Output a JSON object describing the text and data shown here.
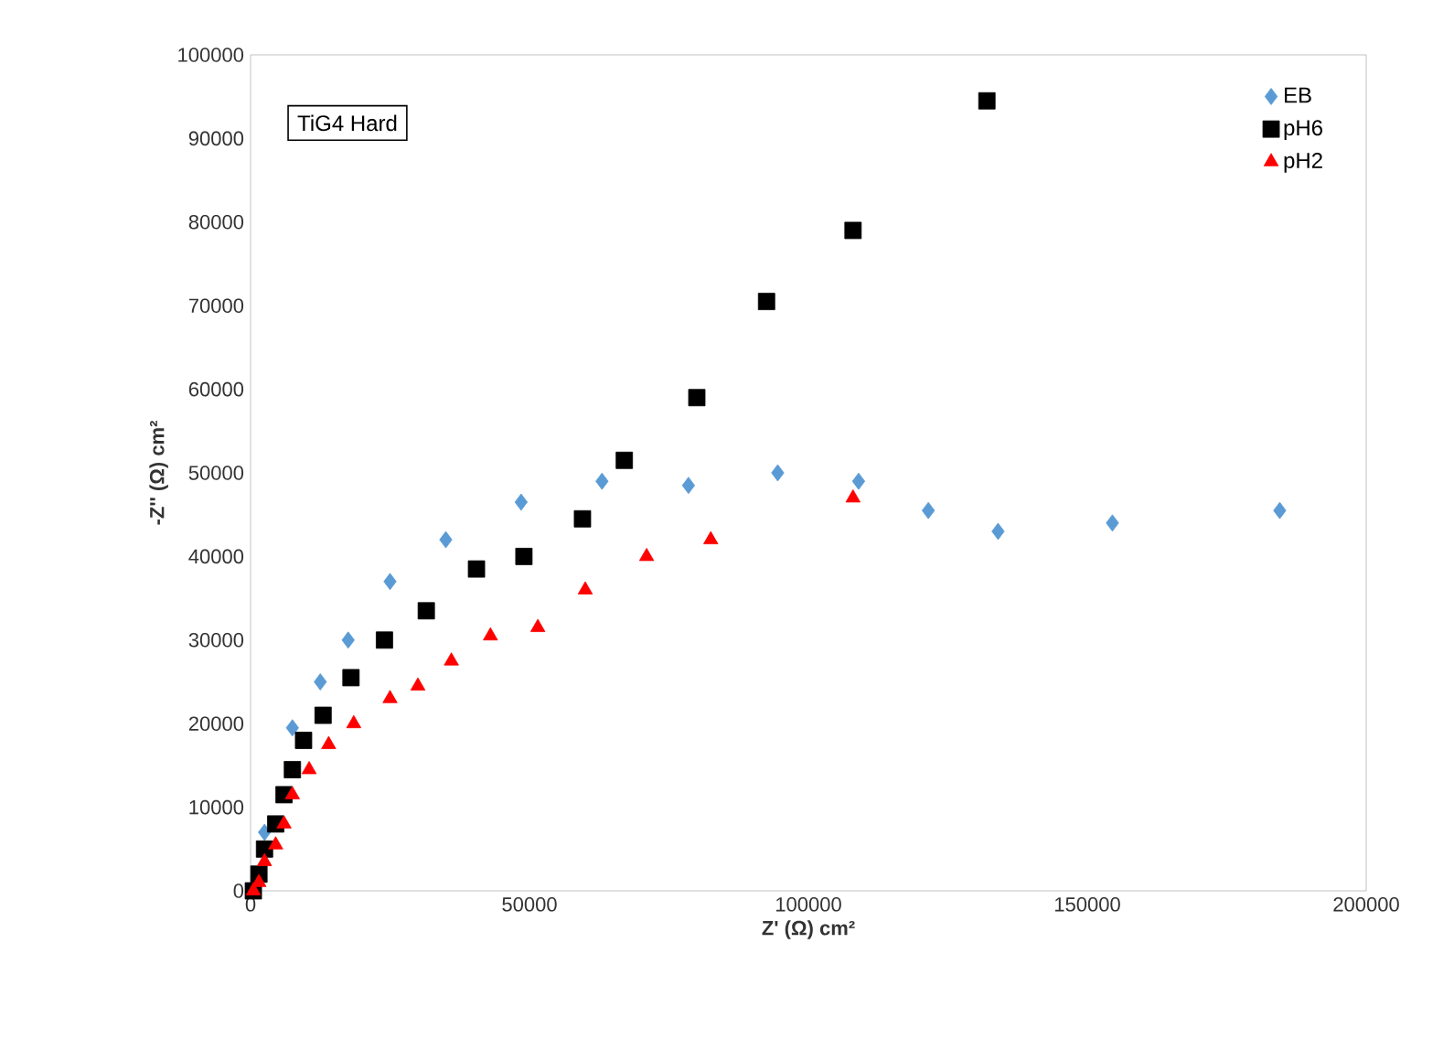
{
  "chart_data": {
    "type": "scatter",
    "xlabel": "Z' (Ω) cm²",
    "ylabel": "-Z'' (Ω) cm²",
    "annotations": [
      "TiG4 Hard"
    ],
    "xlim": [
      0,
      200000
    ],
    "ylim": [
      0,
      100000
    ],
    "xticks": [
      0,
      50000,
      100000,
      150000,
      200000
    ],
    "yticks": [
      0,
      10000,
      20000,
      30000,
      40000,
      50000,
      60000,
      70000,
      80000,
      90000,
      100000
    ],
    "grid": false,
    "legend": "top right",
    "series": [
      {
        "name": "EB",
        "color": "#5b9bd5",
        "marker": "diamond",
        "x": [
          2500,
          7500,
          12500,
          17500,
          25000,
          35000,
          48500,
          63000,
          78500,
          94500,
          109000,
          121500,
          134000,
          154500,
          184500
        ],
        "values": [
          7000,
          19500,
          25000,
          30000,
          37000,
          42000,
          46500,
          49000,
          48500,
          50000,
          49000,
          45500,
          43000,
          44000,
          45500
        ]
      },
      {
        "name": "pH6",
        "color": "#000000",
        "marker": "square",
        "x": [
          500,
          1500,
          2500,
          4500,
          6000,
          7500,
          9500,
          13000,
          18000,
          24000,
          31500,
          40500,
          49000,
          59500,
          67000,
          80000,
          92500,
          108000,
          132000
        ],
        "values": [
          0,
          2000,
          5000,
          8000,
          11500,
          14500,
          18000,
          21000,
          25500,
          30000,
          33500,
          38500,
          40000,
          44500,
          51500,
          59000,
          70500,
          79000,
          94500
        ]
      },
      {
        "name": "pH2",
        "color": "#ff0000",
        "marker": "triangle",
        "x": [
          500,
          1500,
          2500,
          4500,
          6000,
          7500,
          10500,
          14000,
          18500,
          25000,
          30000,
          36000,
          43000,
          51500,
          60000,
          71000,
          82500,
          108000
        ],
        "values": [
          0,
          1000,
          3500,
          5500,
          8000,
          11500,
          14500,
          17500,
          20000,
          23000,
          24500,
          27500,
          30500,
          31500,
          36000,
          40000,
          42000,
          47000
        ]
      }
    ]
  }
}
